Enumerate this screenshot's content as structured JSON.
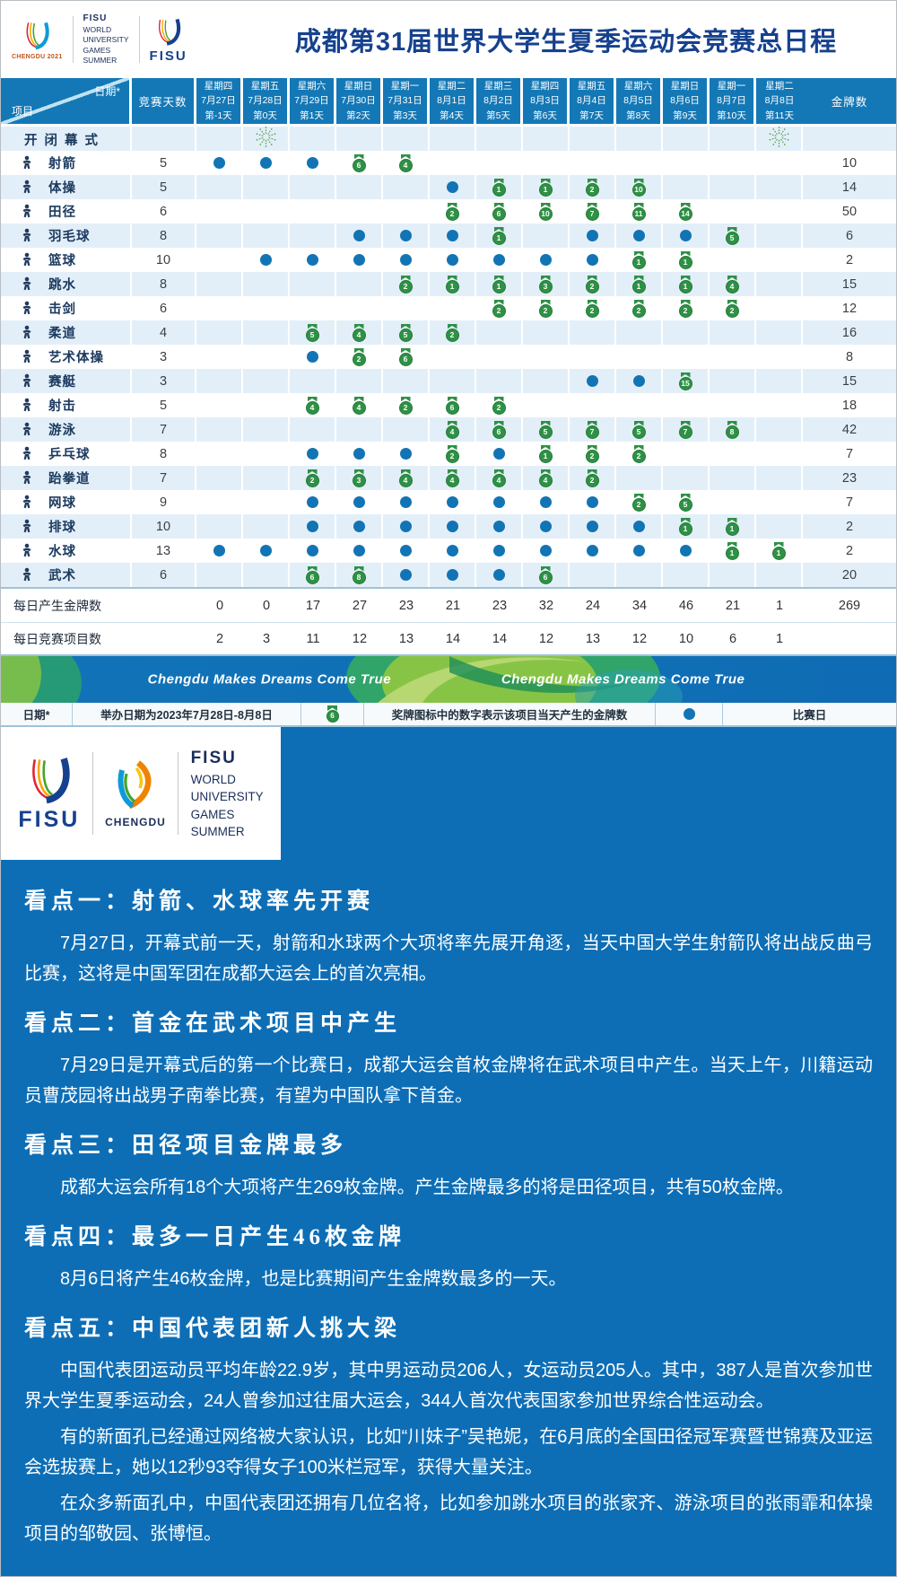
{
  "colors": {
    "table_blue": "#1478b6",
    "medal_green": "#2e9145",
    "dot_blue": "#1274b4",
    "content_blue": "#0d6eb6",
    "title_navy": "#16418e",
    "fireworks_green": "#55a04f"
  },
  "header": {
    "title": "成都第31届世界大学生夏季运动会竞赛总日程",
    "logos": {
      "chengdu2021_label": "CHENGDU 2021",
      "fisu_text_lines": [
        "FISU",
        "WORLD",
        "UNIVERSITY",
        "GAMES",
        "SUMMER"
      ],
      "fisu_label": "FISU"
    }
  },
  "table": {
    "corner_date": "日期*",
    "corner_project": "项目",
    "col_days": "竞赛天数",
    "col_gold": "金牌数",
    "dates": [
      {
        "weekday": "星期四",
        "date": "7月27日",
        "day": "第-1天"
      },
      {
        "weekday": "星期五",
        "date": "7月28日",
        "day": "第0天"
      },
      {
        "weekday": "星期六",
        "date": "7月29日",
        "day": "第1天"
      },
      {
        "weekday": "星期日",
        "date": "7月30日",
        "day": "第2天"
      },
      {
        "weekday": "星期一",
        "date": "7月31日",
        "day": "第3天"
      },
      {
        "weekday": "星期二",
        "date": "8月1日",
        "day": "第4天"
      },
      {
        "weekday": "星期三",
        "date": "8月2日",
        "day": "第5天"
      },
      {
        "weekday": "星期四",
        "date": "8月3日",
        "day": "第6天"
      },
      {
        "weekday": "星期五",
        "date": "8月4日",
        "day": "第7天"
      },
      {
        "weekday": "星期六",
        "date": "8月5日",
        "day": "第8天"
      },
      {
        "weekday": "星期日",
        "date": "8月6日",
        "day": "第9天"
      },
      {
        "weekday": "星期一",
        "date": "8月7日",
        "day": "第10天"
      },
      {
        "weekday": "星期二",
        "date": "8月8日",
        "day": "第11天"
      }
    ],
    "ceremony": {
      "label": "开闭幕式",
      "icon": "fireworks-icon",
      "fireworks_cols": [
        1,
        12
      ]
    },
    "sports": [
      {
        "name": "射箭",
        "icon": "archery-icon",
        "days": 5,
        "gold": 10,
        "cells": [
          "dot",
          "dot",
          "dot",
          6,
          4,
          "",
          "",
          "",
          "",
          "",
          "",
          "",
          ""
        ]
      },
      {
        "name": "体操",
        "icon": "gymnastics-icon",
        "days": 5,
        "gold": 14,
        "cells": [
          "",
          "",
          "",
          "",
          "",
          "dot",
          1,
          1,
          2,
          10,
          "",
          "",
          ""
        ]
      },
      {
        "name": "田径",
        "icon": "athletics-icon",
        "days": 6,
        "gold": 50,
        "cells": [
          "",
          "",
          "",
          "",
          "",
          2,
          6,
          10,
          7,
          11,
          14,
          "",
          ""
        ]
      },
      {
        "name": "羽毛球",
        "icon": "badminton-icon",
        "days": 8,
        "gold": 6,
        "cells": [
          "",
          "",
          "",
          "dot",
          "dot",
          "dot",
          1,
          "",
          "dot",
          "dot",
          "dot",
          5,
          ""
        ]
      },
      {
        "name": "篮球",
        "icon": "basketball-icon",
        "days": 10,
        "gold": 2,
        "cells": [
          "",
          "dot",
          "dot",
          "dot",
          "dot",
          "dot",
          "dot",
          "dot",
          "dot",
          1,
          1,
          "",
          ""
        ]
      },
      {
        "name": "跳水",
        "icon": "diving-icon",
        "days": 8,
        "gold": 15,
        "cells": [
          "",
          "",
          "",
          "",
          2,
          1,
          1,
          3,
          2,
          1,
          1,
          4,
          ""
        ]
      },
      {
        "name": "击剑",
        "icon": "fencing-icon",
        "days": 6,
        "gold": 12,
        "cells": [
          "",
          "",
          "",
          "",
          "",
          "",
          2,
          2,
          2,
          2,
          2,
          2,
          ""
        ]
      },
      {
        "name": "柔道",
        "icon": "judo-icon",
        "days": 4,
        "gold": 16,
        "cells": [
          "",
          "",
          5,
          4,
          5,
          2,
          "",
          "",
          "",
          "",
          "",
          "",
          ""
        ]
      },
      {
        "name": "艺术体操",
        "icon": "rhythmic-gymnastics-icon",
        "days": 3,
        "gold": 8,
        "cells": [
          "",
          "",
          "dot",
          2,
          6,
          "",
          "",
          "",
          "",
          "",
          "",
          "",
          ""
        ]
      },
      {
        "name": "赛艇",
        "icon": "rowing-icon",
        "days": 3,
        "gold": 15,
        "cells": [
          "",
          "",
          "",
          "",
          "",
          "",
          "",
          "",
          "dot",
          "dot",
          15,
          "",
          ""
        ]
      },
      {
        "name": "射击",
        "icon": "shooting-icon",
        "days": 5,
        "gold": 18,
        "cells": [
          "",
          "",
          4,
          4,
          2,
          6,
          2,
          "",
          "",
          "",
          "",
          "",
          ""
        ]
      },
      {
        "name": "游泳",
        "icon": "swimming-icon",
        "days": 7,
        "gold": 42,
        "cells": [
          "",
          "",
          "",
          "",
          "",
          4,
          6,
          5,
          7,
          5,
          7,
          8,
          ""
        ]
      },
      {
        "name": "乒乓球",
        "icon": "table-tennis-icon",
        "days": 8,
        "gold": 7,
        "cells": [
          "",
          "",
          "dot",
          "dot",
          "dot",
          2,
          "dot",
          1,
          2,
          2,
          "",
          "",
          ""
        ]
      },
      {
        "name": "跆拳道",
        "icon": "taekwondo-icon",
        "days": 7,
        "gold": 23,
        "cells": [
          "",
          "",
          2,
          3,
          4,
          4,
          4,
          4,
          2,
          "",
          "",
          "",
          ""
        ]
      },
      {
        "name": "网球",
        "icon": "tennis-icon",
        "days": 9,
        "gold": 7,
        "cells": [
          "",
          "",
          "dot",
          "dot",
          "dot",
          "dot",
          "dot",
          "dot",
          "dot",
          2,
          5,
          "",
          ""
        ]
      },
      {
        "name": "排球",
        "icon": "volleyball-icon",
        "days": 10,
        "gold": 2,
        "cells": [
          "",
          "",
          "dot",
          "dot",
          "dot",
          "dot",
          "dot",
          "dot",
          "dot",
          "dot",
          1,
          1,
          ""
        ]
      },
      {
        "name": "水球",
        "icon": "water-polo-icon",
        "days": 13,
        "gold": 2,
        "cells": [
          "dot",
          "dot",
          "dot",
          "dot",
          "dot",
          "dot",
          "dot",
          "dot",
          "dot",
          "dot",
          "dot",
          1,
          1
        ]
      },
      {
        "name": "武术",
        "icon": "wushu-icon",
        "days": 6,
        "gold": 20,
        "cells": [
          "",
          "",
          6,
          8,
          "dot",
          "dot",
          "dot",
          6,
          "",
          "",
          "",
          "",
          ""
        ]
      }
    ],
    "summary_gold": {
      "label": "每日产生金牌数",
      "values": [
        "0",
        "0",
        "17",
        "27",
        "23",
        "21",
        "23",
        "32",
        "24",
        "34",
        "46",
        "21",
        "1"
      ],
      "total": "269"
    },
    "summary_events": {
      "label": "每日竞赛项目数",
      "values": [
        "2",
        "3",
        "11",
        "12",
        "13",
        "14",
        "14",
        "12",
        "13",
        "12",
        "10",
        "6",
        "1"
      ]
    }
  },
  "banner": {
    "slogan": "Chengdu Makes Dreams Come True"
  },
  "legend": {
    "date_note_label": "日期*",
    "date_note": "举办日期为2023年7月28日-8月8日",
    "medal_example": 6,
    "medal_desc": "奖牌图标中的数字表示该项目当天产生的金牌数",
    "dot_desc": "比赛日"
  },
  "logo_band": {
    "fisu_label": "FISU",
    "chengdu_label": "CHENGDU",
    "text_lines": [
      "FISU",
      "WORLD",
      "UNIVERSITY",
      "GAMES",
      "SUMMER"
    ]
  },
  "articles": [
    {
      "heading": "看点一：射箭、水球率先开赛",
      "paragraphs": [
        "7月27日，开幕式前一天，射箭和水球两个大项将率先展开角逐，当天中国大学生射箭队将出战反曲弓比赛，这将是中国军团在成都大运会上的首次亮相。"
      ]
    },
    {
      "heading": "看点二：首金在武术项目中产生",
      "paragraphs": [
        "7月29日是开幕式后的第一个比赛日，成都大运会首枚金牌将在武术项目中产生。当天上午，川籍运动员曹茂园将出战男子南拳比赛，有望为中国队拿下首金。"
      ]
    },
    {
      "heading": "看点三：田径项目金牌最多",
      "paragraphs": [
        "成都大运会所有18个大项将产生269枚金牌。产生金牌最多的将是田径项目，共有50枚金牌。"
      ]
    },
    {
      "heading": "看点四：最多一日产生46枚金牌",
      "paragraphs": [
        "8月6日将产生46枚金牌，也是比赛期间产生金牌数最多的一天。"
      ]
    },
    {
      "heading": "看点五：中国代表团新人挑大梁",
      "paragraphs": [
        "中国代表团运动员平均年龄22.9岁，其中男运动员206人，女运动员205人。其中，387人是首次参加世界大学生夏季运动会，24人曾参加过往届大运会，344人首次代表国家参加世界综合性运动会。",
        "有的新面孔已经通过网络被大家认识，比如“川妹子”吴艳妮，在6月底的全国田径冠军赛暨世锦赛及亚运会选拔赛上，她以12秒93夺得女子100米栏冠军，获得大量关注。",
        "在众多新面孔中，中国代表团还拥有几位名将，比如参加跳水项目的张家齐、游泳项目的张雨霏和体操项目的邹敬园、张博恒。"
      ]
    }
  ]
}
